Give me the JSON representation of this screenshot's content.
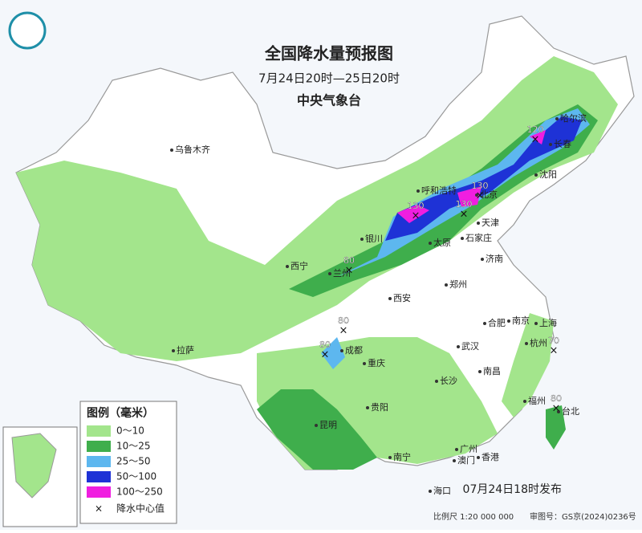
{
  "header": {
    "title": "全国降水量预报图",
    "subtitle": "7月24日20时—25日20时",
    "issuer": "中央气象台"
  },
  "legend": {
    "title": "图例（毫米）",
    "items": [
      "0～10",
      "10～25",
      "25～50",
      "50～100",
      "100～250"
    ],
    "center": "降水中心值"
  },
  "cities": [
    "乌鲁木齐",
    "拉萨",
    "西宁",
    "兰州",
    "银川",
    "呼和浩特",
    "北京",
    "天津",
    "石家庄",
    "太原",
    "济南",
    "郑州",
    "西安",
    "成都",
    "重庆",
    "贵阳",
    "昆明",
    "南宁",
    "广州",
    "澳门",
    "香港",
    "海口",
    "长沙",
    "武汉",
    "南昌",
    "合肥",
    "南京",
    "上海",
    "杭州",
    "福州",
    "台北",
    "沈阳",
    "长春",
    "哈尔滨"
  ],
  "rain_centers": [
    120,
    130,
    130,
    130,
    80,
    80,
    80,
    70,
    80
  ],
  "footer": {
    "issued": "07月24日18时发布",
    "scale": "比例尺 1:20 000 000",
    "approval": "审图号：GS京(2024)0236号"
  }
}
